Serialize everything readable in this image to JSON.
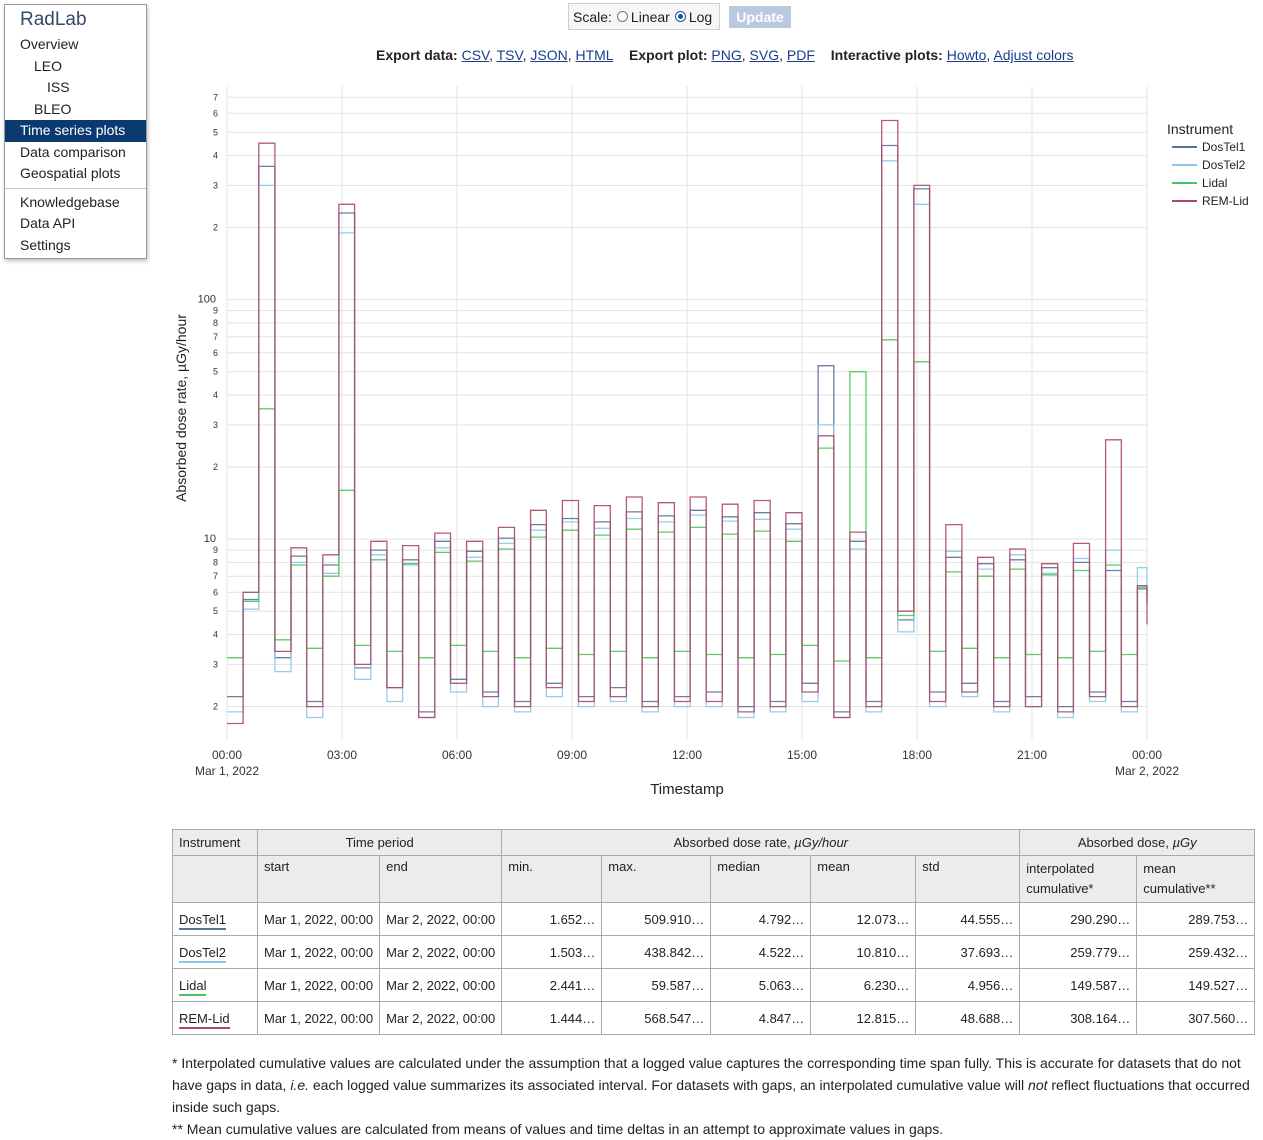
{
  "sidebar": {
    "brand": "RadLab",
    "items": [
      {
        "label": "Overview",
        "level": 1
      },
      {
        "label": "LEO",
        "level": 2
      },
      {
        "label": "ISS",
        "level": 3
      },
      {
        "label": "BLEO",
        "level": 2
      },
      {
        "label": "Time series plots",
        "level": 1,
        "active": true
      },
      {
        "label": "Data comparison",
        "level": 1
      },
      {
        "label": "Geospatial plots",
        "level": 1
      }
    ],
    "items2": [
      {
        "label": "Knowledgebase"
      },
      {
        "label": "Data API"
      },
      {
        "label": "Settings"
      }
    ]
  },
  "controls": {
    "scale_label": "Scale:",
    "linear_label": "Linear",
    "log_label": "Log",
    "selected": "Log",
    "update_label": "Update"
  },
  "export": {
    "data_label": "Export data:",
    "data_links": [
      "CSV",
      "TSV",
      "JSON",
      "HTML"
    ],
    "plot_label": "Export plot:",
    "plot_links": [
      "PNG",
      "SVG",
      "PDF"
    ],
    "interactive_label": "Interactive plots:",
    "interactive_links": [
      "Howto",
      "Adjust colors"
    ]
  },
  "chart_data": {
    "type": "line",
    "step": true,
    "scale": "log",
    "xlabel": "Timestamp",
    "ylabel": "Absorbed dose rate, µGy/hour",
    "ylim": [
      1.45,
      780
    ],
    "x_ticks": [
      "00:00",
      "03:00",
      "06:00",
      "09:00",
      "12:00",
      "15:00",
      "18:00",
      "21:00",
      "00:00"
    ],
    "x_tick_dates": [
      "Mar 1, 2022",
      "",
      "",
      "",
      "",
      "",
      "",
      "",
      "Mar 2, 2022"
    ],
    "y_ticks": [
      {
        "v": 2,
        "l": "2"
      },
      {
        "v": 3,
        "l": "3"
      },
      {
        "v": 4,
        "l": "4"
      },
      {
        "v": 5,
        "l": "5"
      },
      {
        "v": 6,
        "l": "6"
      },
      {
        "v": 7,
        "l": "7"
      },
      {
        "v": 8,
        "l": "8"
      },
      {
        "v": 9,
        "l": "9"
      },
      {
        "v": 10,
        "l": "10"
      },
      {
        "v": 20,
        "l": "2"
      },
      {
        "v": 30,
        "l": "3"
      },
      {
        "v": 40,
        "l": "4"
      },
      {
        "v": 50,
        "l": "5"
      },
      {
        "v": 60,
        "l": "6"
      },
      {
        "v": 70,
        "l": "7"
      },
      {
        "v": 80,
        "l": "8"
      },
      {
        "v": 90,
        "l": "9"
      },
      {
        "v": 100,
        "l": "100"
      },
      {
        "v": 200,
        "l": "2"
      },
      {
        "v": 300,
        "l": "3"
      },
      {
        "v": 400,
        "l": "4"
      },
      {
        "v": 500,
        "l": "5"
      },
      {
        "v": 600,
        "l": "6"
      },
      {
        "v": 700,
        "l": "7"
      }
    ],
    "legend_title": "Instrument",
    "legend_position": "right",
    "grid": true,
    "x_hours": [
      0,
      0.42,
      0.83,
      1.25,
      1.67,
      2.08,
      2.5,
      2.92,
      3.33,
      3.75,
      4.17,
      4.58,
      5,
      5.42,
      5.83,
      6.25,
      6.67,
      7.08,
      7.5,
      7.92,
      8.33,
      8.75,
      9.17,
      9.58,
      10,
      10.42,
      10.83,
      11.25,
      11.67,
      12.08,
      12.5,
      12.92,
      13.33,
      13.75,
      14.17,
      14.58,
      15,
      15.42,
      15.83,
      16.25,
      16.67,
      17.08,
      17.5,
      17.92,
      18.33,
      18.75,
      19.17,
      19.58,
      20,
      20.42,
      20.83,
      21.25,
      21.67,
      22.08,
      22.5,
      22.92,
      23.33,
      23.75,
      24
    ],
    "series": [
      {
        "name": "DosTel1",
        "color": "#5c7290",
        "values": [
          2.2,
          5.6,
          360,
          3.2,
          8.5,
          2.1,
          7.8,
          230,
          2.9,
          9.0,
          2.4,
          8.2,
          1.9,
          9.8,
          2.6,
          8.9,
          2.3,
          10.1,
          2.1,
          11.5,
          2.5,
          12.2,
          2.2,
          11.8,
          2.4,
          13.0,
          2.1,
          12.5,
          2.2,
          13.2,
          2.3,
          12.4,
          2.0,
          12.9,
          2.1,
          11.6,
          2.5,
          53.0,
          1.9,
          9.8,
          2.1,
          440.0,
          4.6,
          290.0,
          2.3,
          8.4,
          2.5,
          7.9,
          2.1,
          8.2,
          2.2,
          7.6,
          2.0,
          8.0,
          2.3,
          7.4,
          2.1,
          6.2,
          5.4
        ]
      },
      {
        "name": "DosTel2",
        "color": "#8cc8ea",
        "values": [
          1.9,
          5.1,
          300,
          2.8,
          8.0,
          1.8,
          7.2,
          190,
          2.6,
          8.6,
          2.1,
          7.8,
          1.8,
          9.2,
          2.3,
          8.4,
          2.0,
          9.6,
          1.9,
          10.9,
          2.2,
          11.8,
          2.0,
          11.1,
          2.1,
          12.2,
          1.9,
          11.8,
          2.0,
          12.6,
          2.0,
          11.9,
          1.8,
          12.1,
          1.9,
          11.0,
          2.1,
          30.0,
          1.8,
          9.1,
          1.9,
          380.0,
          4.1,
          250.0,
          2.0,
          8.9,
          2.2,
          7.5,
          1.9,
          8.6,
          2.0,
          7.2,
          1.8,
          8.3,
          2.1,
          9.0,
          1.9,
          7.6,
          6.0
        ]
      },
      {
        "name": "Lidal",
        "color": "#4cc45c",
        "values": [
          3.2,
          5.5,
          35.0,
          3.8,
          7.8,
          3.5,
          7.0,
          16.0,
          3.6,
          8.2,
          3.4,
          7.9,
          3.2,
          8.8,
          3.6,
          8.1,
          3.4,
          9.1,
          3.2,
          10.2,
          3.5,
          10.9,
          3.3,
          10.4,
          3.4,
          11.0,
          3.2,
          10.7,
          3.4,
          11.2,
          3.3,
          10.5,
          3.2,
          10.8,
          3.3,
          9.8,
          3.6,
          24.0,
          3.1,
          50.0,
          3.2,
          68.0,
          4.8,
          55.0,
          3.4,
          7.3,
          3.5,
          7.0,
          3.2,
          7.5,
          3.3,
          7.1,
          3.2,
          7.4,
          3.4,
          7.8,
          3.3,
          6.3,
          5.8
        ]
      },
      {
        "name": "REM-Lid",
        "color": "#a8496a",
        "values": [
          1.7,
          6.0,
          450,
          3.4,
          9.2,
          2.0,
          8.6,
          250,
          3.0,
          9.8,
          2.4,
          9.4,
          1.8,
          10.6,
          2.5,
          9.8,
          2.2,
          11.2,
          2.0,
          13.2,
          2.4,
          14.5,
          2.1,
          13.8,
          2.2,
          15.0,
          2.0,
          14.2,
          2.1,
          15.0,
          2.1,
          14.0,
          1.9,
          14.5,
          2.0,
          12.9,
          2.3,
          27.0,
          1.8,
          10.7,
          2.0,
          560.0,
          5.0,
          300.0,
          2.1,
          11.5,
          2.3,
          8.4,
          2.0,
          9.1,
          2.0,
          7.9,
          1.9,
          9.6,
          2.2,
          26.0,
          2.0,
          6.4,
          4.4
        ]
      }
    ]
  },
  "table": {
    "h_instrument": "Instrument",
    "h_time_period": "Time period",
    "h_dose_rate": "Absorbed dose rate, ",
    "h_dose_rate_unit": "µGy/hour",
    "h_dose": "Absorbed dose, ",
    "h_dose_unit": "µGy",
    "h_start": "start",
    "h_end": "end",
    "h_min": "min.",
    "h_max": "max.",
    "h_median": "median",
    "h_mean": "mean",
    "h_std": "std",
    "h_interp": "interpolated cumulative*",
    "h_meancum": "mean cumulative**",
    "rows": [
      {
        "name": "DosTel1",
        "color": "#5c7290",
        "start": "Mar 1, 2022, 00:00",
        "end": "Mar 2, 2022, 00:00",
        "min": "1.652…",
        "max": "509.910…",
        "median": "4.792…",
        "mean": "12.073…",
        "std": "44.555…",
        "interp": "290.290…",
        "meancum": "289.753…"
      },
      {
        "name": "DosTel2",
        "color": "#8cc8ea",
        "start": "Mar 1, 2022, 00:00",
        "end": "Mar 2, 2022, 00:00",
        "min": "1.503…",
        "max": "438.842…",
        "median": "4.522…",
        "mean": "10.810…",
        "std": "37.693…",
        "interp": "259.779…",
        "meancum": "259.432…"
      },
      {
        "name": "Lidal",
        "color": "#4cc45c",
        "start": "Mar 1, 2022, 00:00",
        "end": "Mar 2, 2022, 00:00",
        "min": "2.441…",
        "max": "59.587…",
        "median": "5.063…",
        "mean": "6.230…",
        "std": "4.956…",
        "interp": "149.587…",
        "meancum": "149.527…"
      },
      {
        "name": "REM-Lid",
        "color": "#a8496a",
        "start": "Mar 1, 2022, 00:00",
        "end": "Mar 2, 2022, 00:00",
        "min": "1.444…",
        "max": "568.547…",
        "median": "4.847…",
        "mean": "12.815…",
        "std": "48.688…",
        "interp": "308.164…",
        "meancum": "307.560…"
      }
    ]
  },
  "notes": {
    "n1_a": "* Interpolated cumulative values are calculated under the assumption that a logged value captures the corresponding time span fully. This is accurate for datasets that do not have gaps in data, ",
    "n1_ie": "i.e.",
    "n1_b": " each logged value summarizes its associated interval. For datasets with gaps, an interpolated cumulative value will ",
    "n1_not": "not",
    "n1_c": " reflect fluctuations that occurred inside such gaps.",
    "n2": "** Mean cumulative values are calculated from means of values and time deltas in an attempt to approximate values in gaps."
  }
}
